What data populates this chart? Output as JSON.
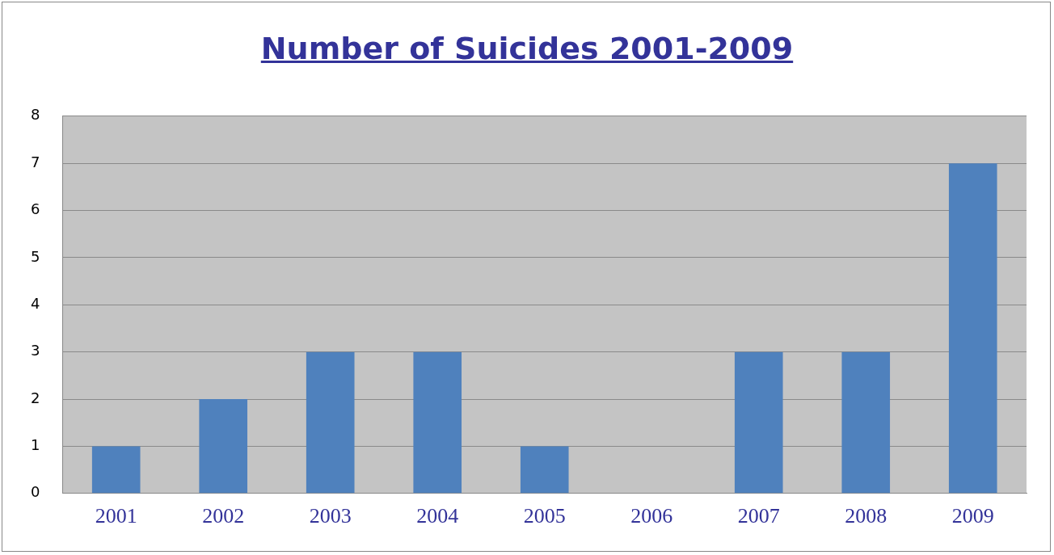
{
  "chart_data": {
    "type": "bar",
    "title": "Number of Suicides 2001-2009",
    "categories": [
      "2001",
      "2002",
      "2003",
      "2004",
      "2005",
      "2006",
      "2007",
      "2008",
      "2009"
    ],
    "values": [
      1,
      2,
      3,
      3,
      1,
      0,
      3,
      3,
      7
    ],
    "color": "#4f81bd",
    "ylim": [
      0,
      8
    ],
    "yticks": [
      0,
      1,
      2,
      3,
      4,
      5,
      6,
      7,
      8
    ],
    "grid": "y"
  }
}
